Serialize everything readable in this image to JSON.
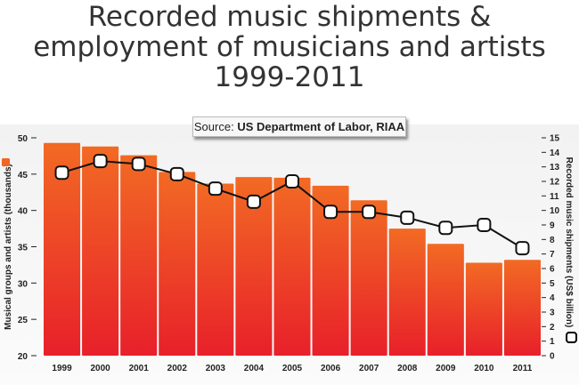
{
  "chart_data": {
    "type": "bar",
    "title": "Recorded music shipments & employment of musicians and artists 1999-2011",
    "title_lines": [
      "Recorded music shipments &",
      "employment of musicians and artists",
      "1999-2011"
    ],
    "source_label": "Source:",
    "source_text": "US Department of Labor, RIAA",
    "categories": [
      "1999",
      "2000",
      "2001",
      "2002",
      "2003",
      "2004",
      "2005",
      "2006",
      "2007",
      "2008",
      "2009",
      "2010",
      "2011"
    ],
    "series": [
      {
        "name": "Musical groups and artists (thousands)",
        "type": "bar",
        "axis": "left",
        "color": "#f26522",
        "values": [
          49.3,
          48.8,
          47.6,
          45.3,
          43.7,
          44.6,
          44.5,
          43.4,
          41.4,
          37.5,
          35.4,
          32.8,
          33.2
        ]
      },
      {
        "name": "Recorded music shipments (US$ billion)",
        "type": "line",
        "axis": "right",
        "color": "#000000",
        "values": [
          12.6,
          13.4,
          13.2,
          12.5,
          11.5,
          10.6,
          12.0,
          9.9,
          9.9,
          9.5,
          8.8,
          9.0,
          7.4
        ]
      }
    ],
    "ylabel": "Musical groups and artists (thousands)",
    "ylabel_right": "Recorded music shipments (US$ billion)",
    "ylim": [
      20,
      50
    ],
    "yticks": [
      20,
      25,
      30,
      35,
      40,
      45,
      50
    ],
    "ylim_right": [
      0,
      15
    ],
    "yticks_right": [
      0,
      1,
      2,
      3,
      4,
      5,
      6,
      7,
      8,
      9,
      10,
      11,
      12,
      13,
      14,
      15
    ],
    "grid": false,
    "legend": "left and right axis markers"
  }
}
